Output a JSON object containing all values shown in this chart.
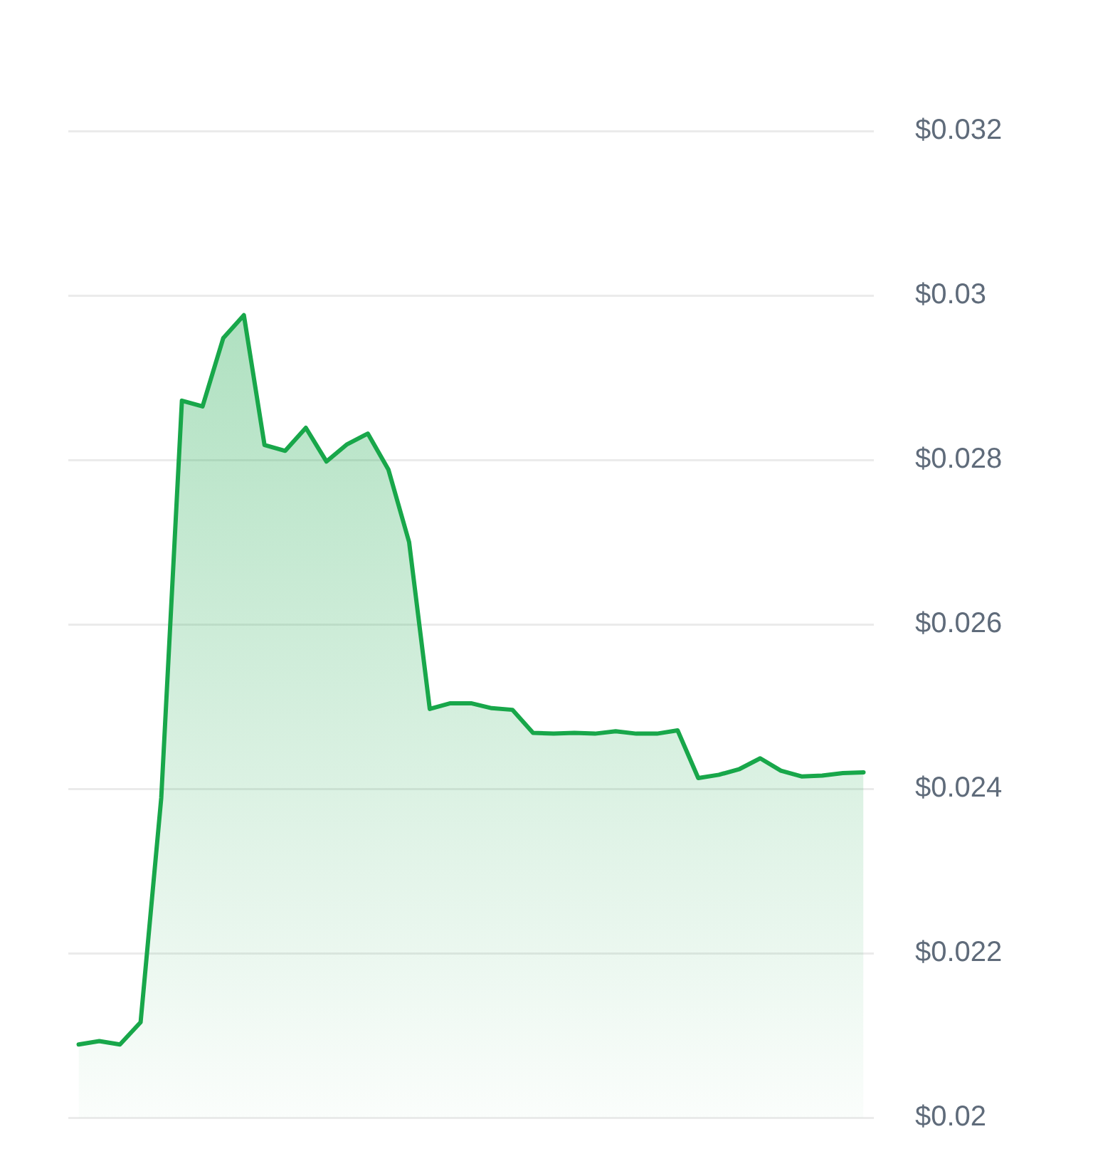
{
  "chart_data": {
    "type": "area",
    "categories": [
      null,
      null,
      null,
      null,
      null,
      null,
      null,
      null,
      null,
      null,
      null,
      null,
      null,
      null,
      null,
      null,
      null,
      null,
      null,
      null,
      null,
      null,
      null,
      null,
      null,
      null,
      null,
      null,
      null,
      null,
      null,
      null,
      null,
      null,
      null,
      null,
      null,
      null,
      null
    ],
    "values": [
      0.02089,
      0.02093,
      0.02089,
      0.02116,
      0.02389,
      0.02872,
      0.02865,
      0.02948,
      0.02976,
      0.02818,
      0.02811,
      0.02839,
      0.02798,
      0.02819,
      0.02832,
      0.02788,
      0.027,
      0.02497,
      0.02504,
      0.02504,
      0.02498,
      0.02496,
      0.02468,
      0.02467,
      0.02468,
      0.02467,
      0.0247,
      0.02467,
      0.02467,
      0.02471,
      0.02413,
      0.02417,
      0.02424,
      0.02437,
      0.02422,
      0.02415,
      0.02416,
      0.02419,
      0.0242
    ],
    "color": "#18a74a",
    "ylim": [
      0.02,
      0.032
    ],
    "yticks": [
      {
        "value": 0.02,
        "label": "$0.02"
      },
      {
        "value": 0.022,
        "label": "$0.022"
      },
      {
        "value": 0.024,
        "label": "$0.024"
      },
      {
        "value": 0.026,
        "label": "$0.026"
      },
      {
        "value": 0.028,
        "label": "$0.028"
      },
      {
        "value": 0.03,
        "label": "$0.03"
      },
      {
        "value": 0.032,
        "label": "$0.032"
      }
    ],
    "grid": "y",
    "tick_labels": "y",
    "marker": "none"
  }
}
